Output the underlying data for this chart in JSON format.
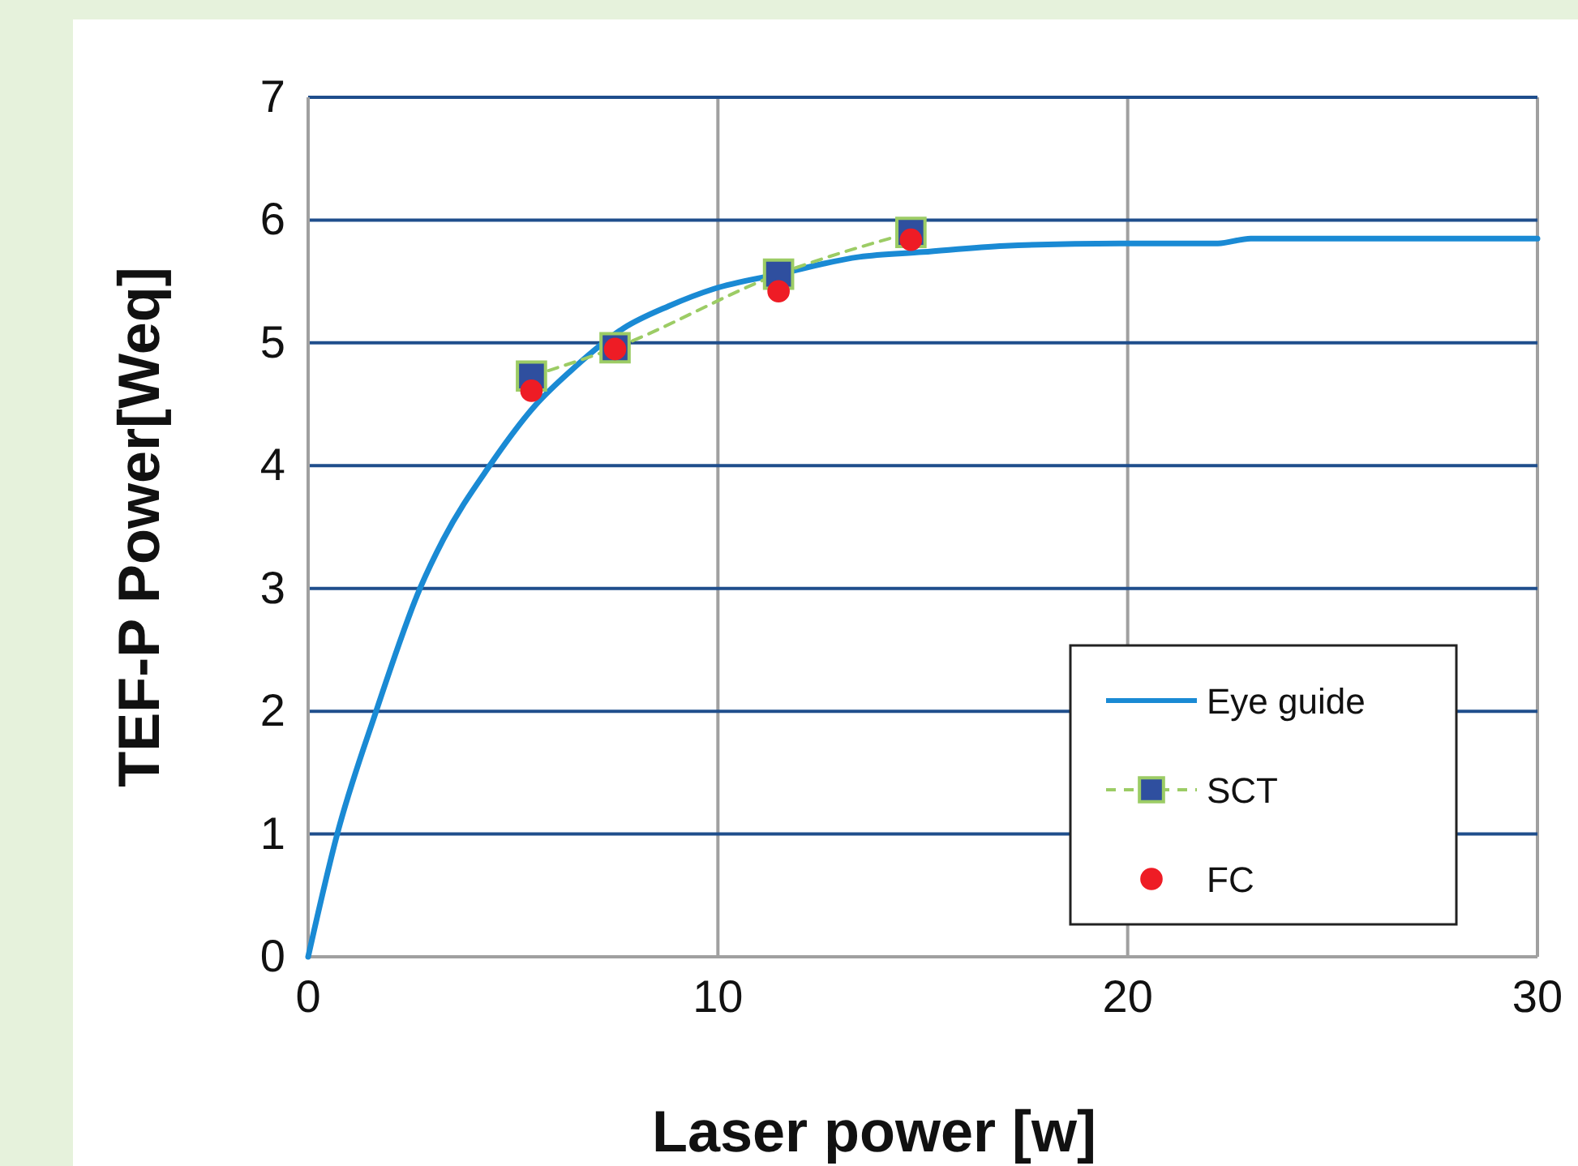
{
  "chart_data": {
    "type": "line",
    "xlabel": "Laser power [w]",
    "ylabel": "TEF-P Power[Weq]",
    "xlim": [
      0,
      30
    ],
    "xticks": [
      0,
      10,
      20,
      30
    ],
    "ylim": [
      0,
      7
    ],
    "yticks": [
      0,
      1,
      2,
      3,
      4,
      5,
      6,
      7
    ],
    "grid": true,
    "legend": "bottom right",
    "series": [
      {
        "name": "Eye guide",
        "color": "#1a8ad4",
        "marker": "none",
        "line_style": "solid",
        "x": [
          0,
          0.71,
          1.66,
          2.73,
          3.3,
          4.43,
          5.54,
          6.5,
          7.7,
          8.8,
          9.9,
          11.48,
          13.45,
          15,
          17,
          19.8,
          22.2,
          23,
          30
        ],
        "values": [
          0,
          1,
          2,
          3,
          3.4,
          4,
          4.49,
          4.8,
          5.12,
          5.3,
          5.44,
          5.56,
          5.7,
          5.74,
          5.79,
          5.81,
          5.81,
          5.85,
          5.85
        ]
      },
      {
        "name": "SCT",
        "type": "line",
        "color": "#2f4f9f",
        "marker": "square",
        "line_style": "dashed",
        "x": [
          5.45,
          7.49,
          11.48,
          14.71
        ],
        "values": [
          4.73,
          4.96,
          5.56,
          5.9
        ]
      },
      {
        "name": "FC",
        "type": "scatter",
        "color": "#ee1c25",
        "marker": "circle",
        "x": [
          5.45,
          7.49,
          11.48,
          14.71
        ],
        "values": [
          4.61,
          4.95,
          5.42,
          5.84
        ]
      }
    ]
  }
}
